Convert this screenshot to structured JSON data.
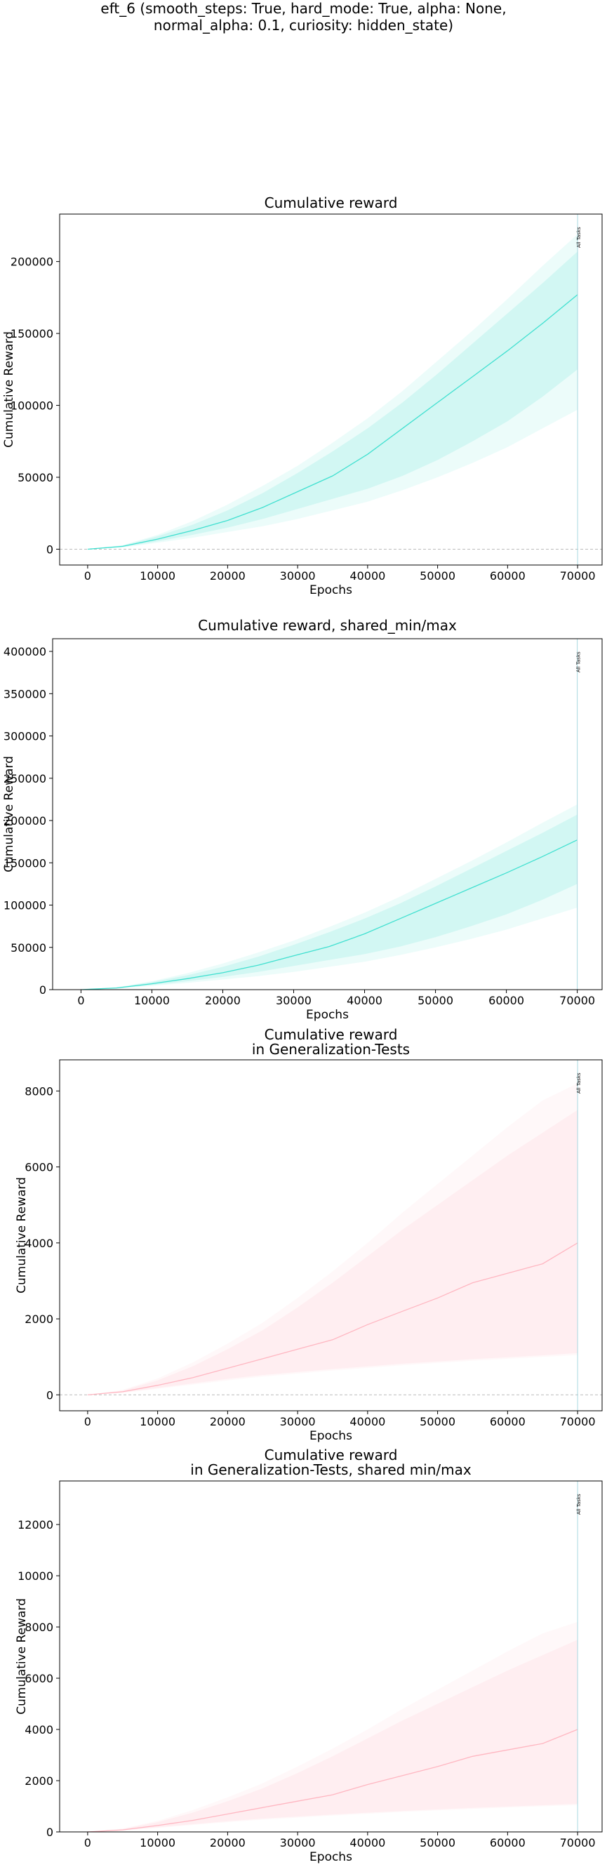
{
  "suptitle": {
    "line1": "eft_6 (smooth_steps: True, hard_mode: True, alpha: None,",
    "line2": "normal_alpha: 0.1, curiosity: hidden_state)"
  },
  "colors": {
    "train": "#40e0d0",
    "test": "#ffb6c1",
    "zero_line": "#bbbbbb",
    "vline": "#a8d8e0"
  },
  "chart_data": [
    {
      "type": "line",
      "title": "Cumulative reward",
      "xlabel": "Epochs",
      "ylabel": "Cumulative Reward",
      "xlim": [
        -4000,
        73500
      ],
      "ylim": [
        -11000,
        233000
      ],
      "xticks": [
        0,
        10000,
        20000,
        30000,
        40000,
        50000,
        60000,
        70000
      ],
      "yticks": [
        0,
        50000,
        100000,
        150000,
        200000
      ],
      "zero_line": true,
      "grid": false,
      "color_key": "train",
      "vline": {
        "x": 70000,
        "label": "All Tasks"
      },
      "series": [
        {
          "x": [
            0,
            5000,
            10000,
            15000,
            20000,
            25000,
            30000,
            35000,
            40000,
            45000,
            50000,
            55000,
            60000,
            65000,
            70000
          ],
          "mean": [
            0,
            2000,
            7000,
            13000,
            20000,
            29000,
            40000,
            51000,
            66000,
            84000,
            102000,
            120000,
            138000,
            157000,
            177000
          ],
          "inner_low": [
            0,
            1500,
            5500,
            10000,
            15000,
            21000,
            28000,
            35000,
            42000,
            51000,
            62000,
            75000,
            89000,
            106000,
            125000
          ],
          "inner_high": [
            0,
            2500,
            9000,
            17000,
            27000,
            39000,
            53000,
            68000,
            84000,
            102000,
            122000,
            143000,
            164000,
            185000,
            207000
          ],
          "outer_low": [
            0,
            1200,
            4500,
            8000,
            12000,
            16000,
            21000,
            27000,
            33000,
            41000,
            50000,
            60000,
            71000,
            84000,
            97000
          ],
          "outer_high": [
            0,
            2800,
            10000,
            19500,
            31000,
            44000,
            58000,
            74000,
            91000,
            110000,
            131000,
            152000,
            174000,
            197000,
            219000
          ]
        }
      ]
    },
    {
      "type": "line",
      "title": "Cumulative reward, shared_min/max",
      "xlabel": "Epochs",
      "ylabel": "Cumulative Reward",
      "xlim": [
        -4000,
        73500
      ],
      "ylim": [
        0,
        415000
      ],
      "xticks": [
        0,
        10000,
        20000,
        30000,
        40000,
        50000,
        60000,
        70000
      ],
      "yticks": [
        0,
        50000,
        100000,
        150000,
        200000,
        250000,
        300000,
        350000,
        400000
      ],
      "zero_line": false,
      "grid": false,
      "color_key": "train",
      "vline": {
        "x": 70000,
        "label": "All Tasks"
      },
      "series": [
        {
          "x": [
            0,
            5000,
            10000,
            15000,
            20000,
            25000,
            30000,
            35000,
            40000,
            45000,
            50000,
            55000,
            60000,
            65000,
            70000
          ],
          "mean": [
            0,
            2000,
            7000,
            13000,
            20000,
            29000,
            40000,
            51000,
            66000,
            84000,
            102000,
            120000,
            138000,
            157000,
            177000
          ],
          "inner_low": [
            0,
            1500,
            5500,
            10000,
            15000,
            21000,
            28000,
            35000,
            42000,
            51000,
            62000,
            75000,
            89000,
            106000,
            125000
          ],
          "inner_high": [
            0,
            2500,
            9000,
            17000,
            27000,
            39000,
            53000,
            68000,
            84000,
            102000,
            122000,
            143000,
            164000,
            185000,
            207000
          ],
          "outer_low": [
            0,
            1200,
            4500,
            8000,
            12000,
            16000,
            21000,
            27000,
            33000,
            41000,
            50000,
            60000,
            71000,
            84000,
            97000
          ],
          "outer_high": [
            0,
            2800,
            10000,
            19500,
            31000,
            44000,
            58000,
            74000,
            91000,
            110000,
            131000,
            152000,
            174000,
            197000,
            219000
          ]
        }
      ]
    },
    {
      "type": "line",
      "title": "Cumulative reward\nin Generalization-Tests",
      "xlabel": "Epochs",
      "ylabel": "Cumulative Reward",
      "xlim": [
        -4000,
        73500
      ],
      "ylim": [
        -420,
        8820
      ],
      "xticks": [
        0,
        10000,
        20000,
        30000,
        40000,
        50000,
        60000,
        70000
      ],
      "yticks": [
        0,
        2000,
        4000,
        6000,
        8000
      ],
      "zero_line": true,
      "grid": false,
      "color_key": "test",
      "vline": {
        "x": 70000,
        "label": "All Tasks"
      },
      "series": [
        {
          "x": [
            0,
            5000,
            10000,
            15000,
            20000,
            25000,
            30000,
            35000,
            40000,
            45000,
            50000,
            55000,
            60000,
            65000,
            70000
          ],
          "mean": [
            0,
            80,
            250,
            450,
            700,
            950,
            1200,
            1450,
            1850,
            2200,
            2550,
            2950,
            3200,
            3450,
            4000
          ],
          "inner_low": [
            0,
            60,
            180,
            300,
            420,
            520,
            600,
            680,
            750,
            820,
            880,
            940,
            990,
            1040,
            1100
          ],
          "inner_high": [
            0,
            110,
            380,
            750,
            1200,
            1700,
            2300,
            2950,
            3650,
            4350,
            5000,
            5650,
            6300,
            6900,
            7500
          ],
          "outer_low": [
            0,
            50,
            160,
            270,
            380,
            480,
            560,
            640,
            710,
            780,
            840,
            900,
            950,
            1000,
            1050
          ],
          "outer_high": [
            0,
            130,
            430,
            850,
            1350,
            1900,
            2550,
            3250,
            4000,
            4800,
            5550,
            6300,
            7050,
            7750,
            8200
          ]
        }
      ]
    },
    {
      "type": "line",
      "title": "Cumulative reward\nin Generalization-Tests, shared min/max",
      "xlabel": "Epochs",
      "ylabel": "Cumulative Reward",
      "xlim": [
        -4000,
        73500
      ],
      "ylim": [
        0,
        13700
      ],
      "xticks": [
        0,
        10000,
        20000,
        30000,
        40000,
        50000,
        60000,
        70000
      ],
      "yticks": [
        0,
        2000,
        4000,
        6000,
        8000,
        10000,
        12000
      ],
      "zero_line": false,
      "grid": false,
      "color_key": "test",
      "vline": {
        "x": 70000,
        "label": "All Tasks"
      },
      "series": [
        {
          "x": [
            0,
            5000,
            10000,
            15000,
            20000,
            25000,
            30000,
            35000,
            40000,
            45000,
            50000,
            55000,
            60000,
            65000,
            70000
          ],
          "mean": [
            0,
            80,
            250,
            450,
            700,
            950,
            1200,
            1450,
            1850,
            2200,
            2550,
            2950,
            3200,
            3450,
            4000
          ],
          "inner_low": [
            0,
            60,
            180,
            300,
            420,
            520,
            600,
            680,
            750,
            820,
            880,
            940,
            990,
            1040,
            1100
          ],
          "inner_high": [
            0,
            110,
            380,
            750,
            1200,
            1700,
            2300,
            2950,
            3650,
            4350,
            5000,
            5650,
            6300,
            6900,
            7500
          ],
          "outer_low": [
            0,
            50,
            160,
            270,
            380,
            480,
            560,
            640,
            710,
            780,
            840,
            900,
            950,
            1000,
            1050
          ],
          "outer_high": [
            0,
            130,
            430,
            850,
            1350,
            1900,
            2550,
            3250,
            4000,
            4800,
            5550,
            6300,
            7050,
            7750,
            8200
          ]
        }
      ]
    }
  ]
}
